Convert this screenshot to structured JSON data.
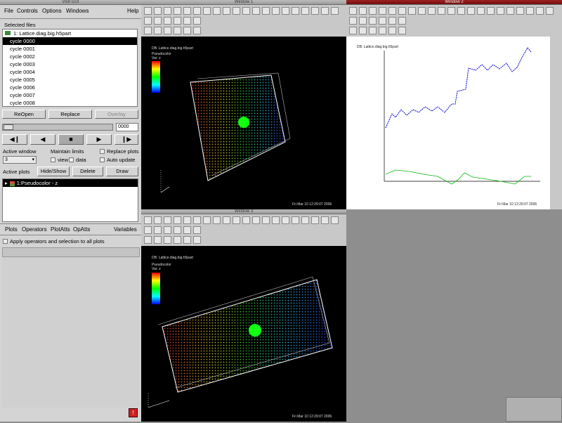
{
  "gui": {
    "title": "VisIt GUI",
    "menu": {
      "file": "File",
      "controls": "Controls",
      "options": "Options",
      "windows": "Windows",
      "help": "Help"
    },
    "selected_files_label": "Selected files",
    "file_root": "1: Lattice.diag.big.h5part",
    "cycles": [
      "cycle 0000",
      "cycle 0001",
      "cycle 0002",
      "cycle 0003",
      "cycle 0004",
      "cycle 0005",
      "cycle 0006",
      "cycle 0007",
      "cycle 0008"
    ],
    "reopen": "ReOpen",
    "replace": "Replace",
    "overlay": "Overlay",
    "time_value": "0000",
    "active_window_label": "Active window",
    "active_window_value": "3",
    "maintain_limits": "Maintain limits",
    "view": "view",
    "data": "data",
    "replace_plots": "Replace plots",
    "auto_update": "Auto update",
    "active_plots_label": "Active plots",
    "hide_show": "Hide/Show",
    "delete": "Delete",
    "draw": "Draw",
    "plot_entry": "1:Pseudocolor - z",
    "bottom_menu": {
      "plots": "Plots",
      "operators": "Operators",
      "plotatts": "PlotAtts",
      "opatts": "OpAtts",
      "variables": "Variables"
    },
    "apply_all": "Apply operators and selection to all plots"
  },
  "windows": {
    "w1": {
      "title": "Window 1",
      "db": "DB: Lattice.diag.big.h5part",
      "foot": "Fri Mar 10 12:29:07 2006",
      "legend_title": "Pseudocolor",
      "legend_var": "Var: z"
    },
    "w2": {
      "title": "Window 2",
      "db": "DB: Lattice.diag.big.h5part",
      "foot": "Fri Mar 10 12:29:07 2006"
    },
    "w3": {
      "title": "Window 3",
      "db": "DB: Lattice.diag.big.h5part",
      "foot": "Fri Mar 10 12:29:07 2006",
      "legend_title": "Pseudocolor",
      "legend_var": "Var: z"
    }
  },
  "colors": {
    "accent_title": "#8a1818",
    "gui_bg": "#d4d4d4",
    "desktop": "#8e8e8e"
  }
}
